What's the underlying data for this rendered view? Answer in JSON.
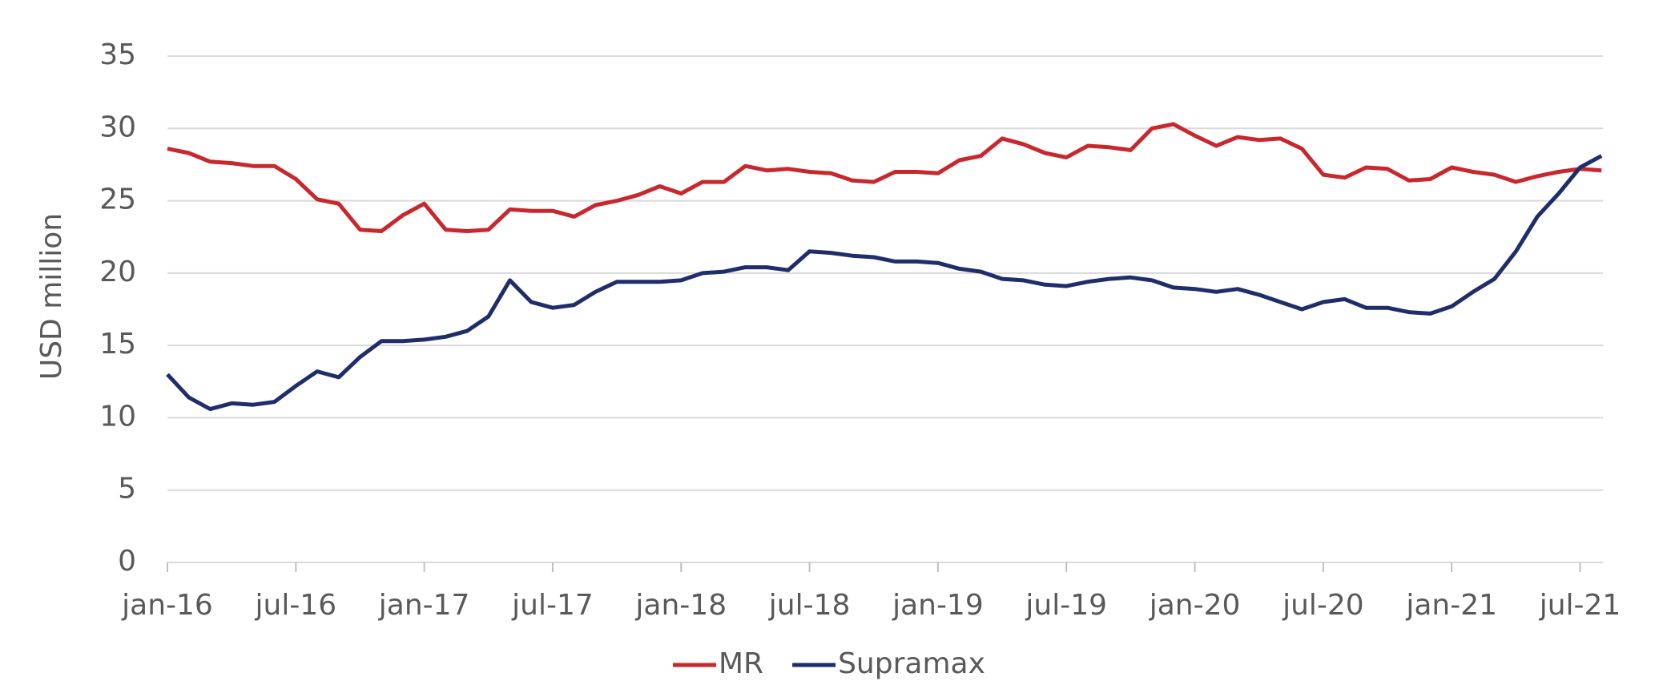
{
  "chart_data": {
    "type": "line",
    "ylabel": "USD million",
    "categories": [
      "jan-16",
      null,
      null,
      null,
      null,
      null,
      "jul-16",
      null,
      null,
      null,
      null,
      null,
      "jan-17",
      null,
      null,
      null,
      null,
      null,
      "jul-17",
      null,
      null,
      null,
      null,
      null,
      "jan-18",
      null,
      null,
      null,
      null,
      null,
      "jul-18",
      null,
      null,
      null,
      null,
      null,
      "jan-19",
      null,
      null,
      null,
      null,
      null,
      "jul-19",
      null,
      null,
      null,
      null,
      null,
      "jan-20",
      null,
      null,
      null,
      null,
      null,
      "jul-20",
      null,
      null,
      null,
      null,
      null,
      "jan-21",
      null,
      null,
      null,
      null,
      null,
      "jul-21",
      null
    ],
    "series": [
      {
        "name": "MR",
        "color": "#c8282d",
        "values": [
          28.6,
          28.3,
          27.7,
          27.6,
          27.4,
          27.4,
          26.5,
          25.1,
          24.8,
          23.0,
          22.9,
          24.0,
          24.8,
          23.0,
          22.9,
          23.0,
          24.4,
          24.3,
          24.3,
          23.9,
          24.7,
          25.0,
          25.4,
          26.0,
          25.5,
          26.3,
          26.3,
          27.4,
          27.1,
          27.2,
          27.0,
          26.9,
          26.4,
          26.3,
          27.0,
          27.0,
          26.9,
          27.8,
          28.1,
          29.3,
          28.9,
          28.3,
          28.0,
          28.8,
          28.7,
          28.5,
          30.0,
          30.3,
          29.5,
          28.8,
          29.4,
          29.2,
          29.3,
          28.6,
          26.8,
          26.6,
          27.3,
          27.2,
          26.4,
          26.5,
          27.3,
          27.0,
          26.8,
          26.3,
          26.7,
          27.0,
          27.2,
          27.1
        ]
      },
      {
        "name": "Supramax",
        "color": "#1f2d6b",
        "values": [
          13.0,
          11.4,
          10.6,
          11.0,
          10.9,
          11.1,
          12.2,
          13.2,
          12.8,
          14.2,
          15.3,
          15.3,
          15.4,
          15.6,
          16.0,
          17.0,
          19.5,
          18.0,
          17.6,
          17.8,
          18.7,
          19.4,
          19.4,
          19.4,
          19.5,
          20.0,
          20.1,
          20.4,
          20.4,
          20.2,
          21.5,
          21.4,
          21.2,
          21.1,
          20.8,
          20.8,
          20.7,
          20.3,
          20.1,
          19.6,
          19.5,
          19.2,
          19.1,
          19.4,
          19.6,
          19.7,
          19.5,
          19.0,
          18.9,
          18.7,
          18.9,
          18.5,
          18.0,
          17.5,
          18.0,
          18.2,
          17.6,
          17.6,
          17.3,
          17.2,
          17.7,
          18.7,
          19.6,
          21.5,
          23.9,
          25.5,
          27.3,
          28.1
        ]
      }
    ],
    "ylim": [
      0,
      35
    ],
    "yticks": [
      0,
      5,
      10,
      15,
      20,
      25,
      30,
      35
    ],
    "grid": true,
    "legend": "bottom"
  }
}
